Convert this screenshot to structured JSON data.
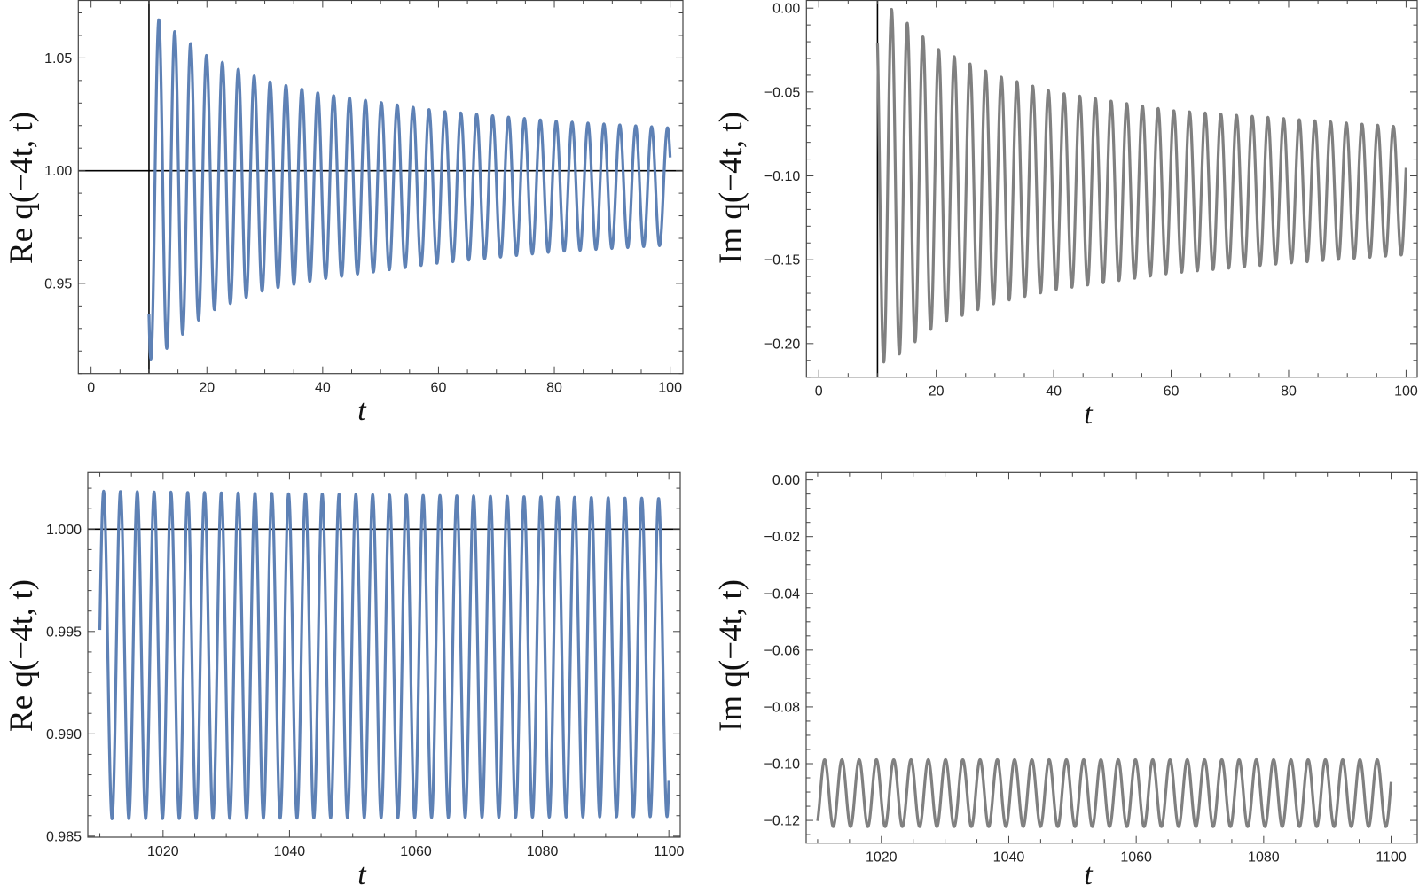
{
  "chart_data": [
    {
      "type": "line",
      "xlabel": "t",
      "ylabel": "Re q(−4t, t)",
      "xlim": [
        -2.2,
        102.2
      ],
      "ylim": [
        0.91,
        1.0755
      ],
      "x_ticks": [
        0,
        20,
        40,
        60,
        80,
        100
      ],
      "x_tick_labels": [
        "0",
        "20",
        "40",
        "60",
        "80",
        "100"
      ],
      "x_minor_step": 5,
      "y_ticks": [
        0.95,
        1.0,
        1.05
      ],
      "y_tick_labels": [
        "0.95",
        "1.00",
        "1.05"
      ],
      "y_minor_step": 0.01,
      "axis_lines": {
        "x_at_y": 1.0,
        "y_at_x": 10
      },
      "grid": false,
      "color": "#5E81B5",
      "series": [
        {
          "t_start": 10,
          "t_end": 100,
          "oscillation": {
            "period": 2.745,
            "first_peak_t": 11.7
          },
          "envelope": {
            "t": [
              10,
              11.7,
              20,
              30,
              40,
              60,
              80,
              100
            ],
            "upper": [
              1.068,
              1.067,
              1.051,
              1.04,
              1.034,
              1.0265,
              1.022,
              1.019
            ],
            "lower": [
              0.916,
              0.918,
              0.937,
              0.947,
              0.952,
              0.959,
              0.964,
              0.967
            ]
          }
        }
      ]
    },
    {
      "type": "line",
      "xlabel": "t",
      "ylabel": "Im q(−4t, t)",
      "xlim": [
        -2.1,
        101.9
      ],
      "ylim": [
        -0.22,
        0.0046
      ],
      "x_ticks": [
        0,
        20,
        40,
        60,
        80,
        100
      ],
      "x_tick_labels": [
        "0",
        "20",
        "40",
        "60",
        "80",
        "100"
      ],
      "x_minor_step": 5,
      "y_ticks": [
        -0.2,
        -0.15,
        -0.1,
        -0.05,
        0.0
      ],
      "y_tick_labels": [
        "−0.20",
        "−0.15",
        "−0.10",
        "−0.05",
        "0.00"
      ],
      "y_minor_step": 0.01,
      "axis_lines": {
        "x_at_y": null,
        "y_at_x": 10
      },
      "grid": false,
      "color": "#808080",
      "series": [
        {
          "t_start": 10,
          "t_end": 100,
          "oscillation": {
            "period": 2.67,
            "first_peak_t": 12.4
          },
          "envelope": {
            "t": [
              10,
              12.4,
              20,
              30,
              40,
              60,
              80,
              100
            ],
            "upper": [
              0.0,
              -0.0007,
              -0.024,
              -0.04,
              -0.05,
              -0.061,
              -0.066,
              -0.071
            ],
            "lower": [
              -0.212,
              -0.21,
              -0.189,
              -0.176,
              -0.168,
              -0.158,
              -0.152,
              -0.147
            ]
          }
        }
      ]
    },
    {
      "type": "line",
      "xlabel": "t",
      "ylabel": "Re q(−4t, t)",
      "xlim": [
        1008.1,
        1101.8
      ],
      "ylim": [
        0.98495,
        1.00277
      ],
      "x_ticks": [
        1020,
        1040,
        1060,
        1080,
        1100
      ],
      "x_tick_labels": [
        "1020",
        "1040",
        "1060",
        "1080",
        "1100"
      ],
      "x_minor_step": 5,
      "y_ticks": [
        0.985,
        0.99,
        0.995,
        1.0
      ],
      "y_tick_labels": [
        "0.985",
        "0.990",
        "0.995",
        "1.000"
      ],
      "y_minor_step": 0.001,
      "axis_lines": {
        "x_at_y": 1.0,
        "y_at_x": null
      },
      "grid": false,
      "color": "#5E81B5",
      "series": [
        {
          "t_start": 1010,
          "t_end": 1100,
          "oscillation": {
            "period": 2.66,
            "first_peak_t": 1010.6
          },
          "envelope": {
            "t": [
              1010,
              1100
            ],
            "upper": [
              1.00186,
              1.0015
            ],
            "lower": [
              0.98584,
              0.98595
            ]
          }
        }
      ]
    },
    {
      "type": "line",
      "xlabel": "t",
      "ylabel": "Im q(−4t, t)",
      "xlim": [
        1008.2,
        1104.1
      ],
      "ylim": [
        -0.128,
        0.0026
      ],
      "x_ticks": [
        1020,
        1040,
        1060,
        1080,
        1100
      ],
      "x_tick_labels": [
        "1020",
        "1040",
        "1060",
        "1080",
        "1100"
      ],
      "x_minor_step": 5,
      "y_ticks": [
        -0.12,
        -0.1,
        -0.08,
        -0.06,
        -0.04,
        -0.02,
        0.0
      ],
      "y_tick_labels": [
        "−0.12",
        "−0.10",
        "−0.08",
        "−0.06",
        "−0.04",
        "−0.02",
        "0.00"
      ],
      "y_minor_step": 0.005,
      "axis_lines": {
        "x_at_y": null,
        "y_at_x": null
      },
      "grid": false,
      "color": "#808080",
      "series": [
        {
          "t_start": 1010,
          "t_end": 1100,
          "oscillation": {
            "period": 2.71,
            "first_peak_t": 1011.1
          },
          "envelope": {
            "t": [
              1010,
              1100
            ],
            "upper": [
              -0.0986,
              -0.0986
            ],
            "lower": [
              -0.1222,
              -0.1222
            ]
          }
        }
      ]
    }
  ]
}
